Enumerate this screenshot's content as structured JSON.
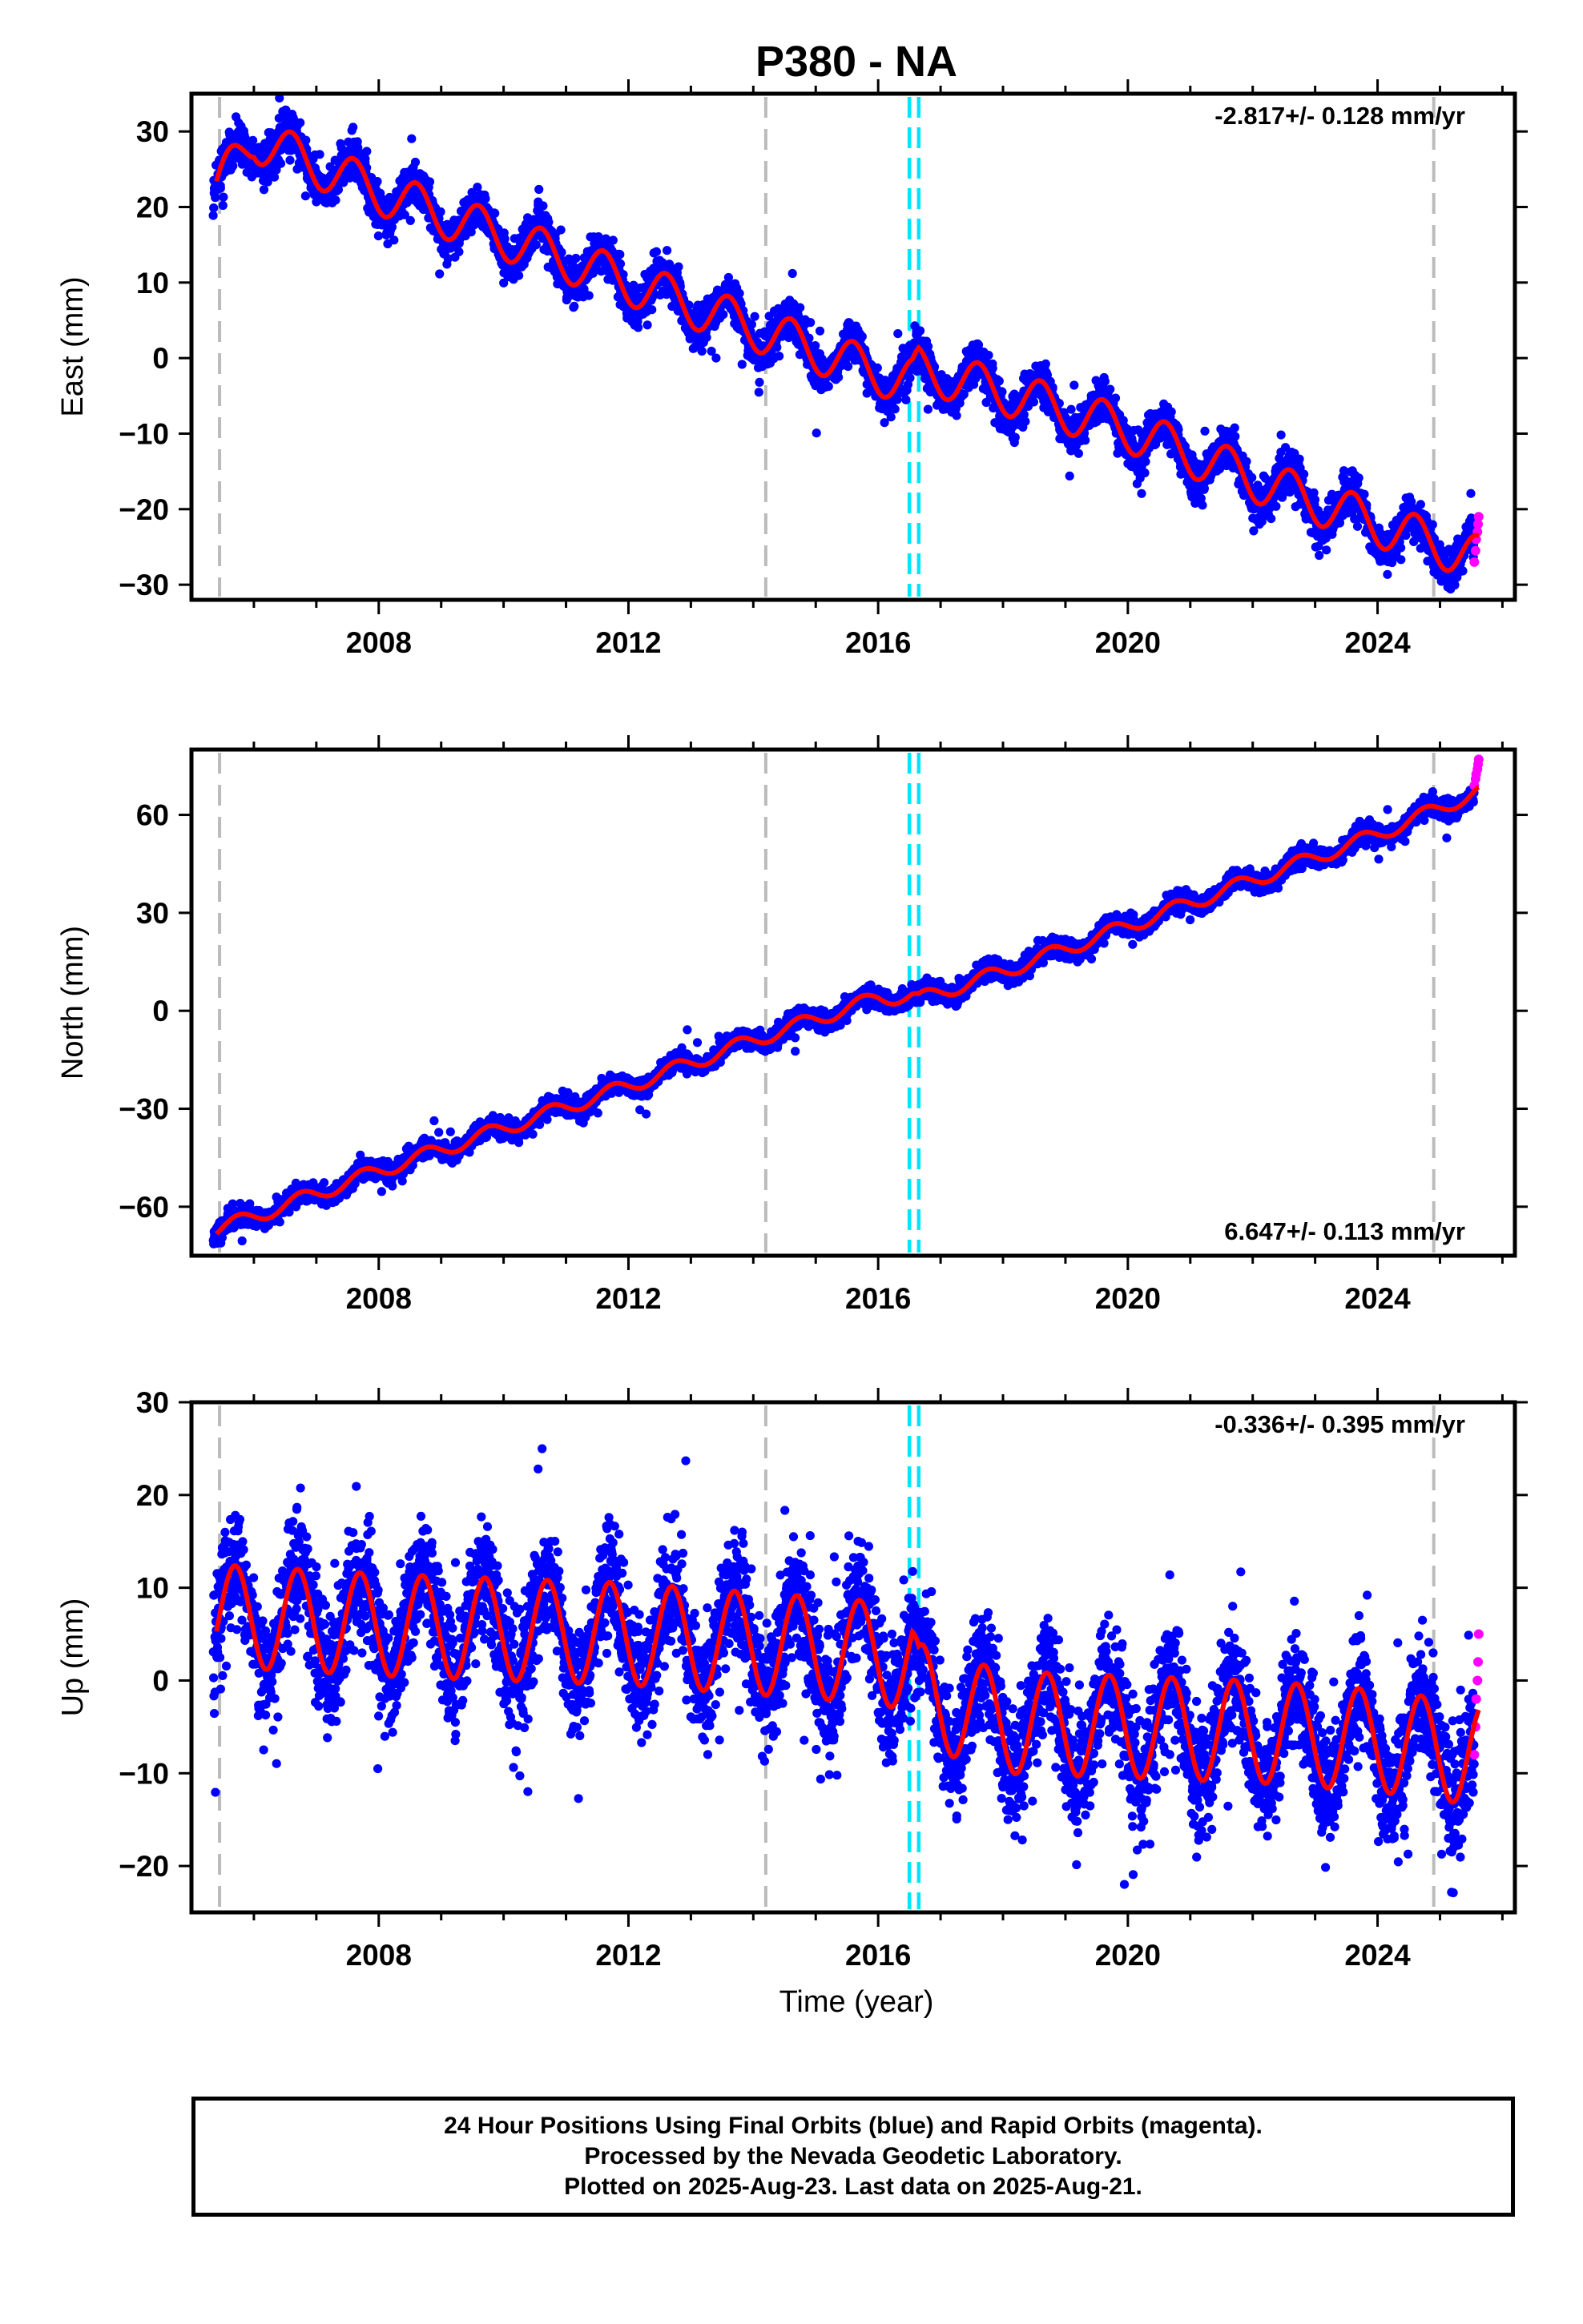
{
  "title": "P380 - NA",
  "x_axis_label": "Time (year)",
  "footer": {
    "line1": "24 Hour Positions Using Final Orbits (blue) and Rapid Orbits (magenta).",
    "line2": "Processed by the Nevada Geodetic Laboratory.",
    "line3": "Plotted on 2025-Aug-23. Last data on 2025-Aug-21."
  },
  "colors": {
    "final_orbits": "#0000ff",
    "rapid_orbits": "#ff00ff",
    "model_fit": "#ff0000",
    "equipment_change": "#bbbbbb",
    "offset_marker": "#00e5ff"
  },
  "chart_data": [
    {
      "type": "scatter",
      "component": "east",
      "ylabel": "East (mm)",
      "rate_text": "-2.817+/- 0.128 mm/yr",
      "rate_position": "top-right",
      "xlim": [
        2005.0,
        2026.2
      ],
      "ylim": [
        -32,
        35
      ],
      "x_ticks": [
        2008,
        2012,
        2016,
        2020,
        2024
      ],
      "y_ticks": [
        -30,
        -20,
        -10,
        0,
        10,
        20,
        30
      ],
      "grid": false,
      "gray_dashed_lines": [
        2005.45,
        2014.2,
        2024.9
      ],
      "cyan_dashed_lines": [
        2016.5,
        2016.65
      ],
      "fit_knots": [
        [
          2005.4,
          22.5
        ],
        [
          2006.0,
          29.0
        ],
        [
          2008.0,
          22.0
        ],
        [
          2010.0,
          16.0
        ],
        [
          2012.0,
          10.0
        ],
        [
          2014.0,
          4.0
        ],
        [
          2016.0,
          -2.0
        ],
        [
          2016.55,
          -3.0
        ],
        [
          2016.65,
          -1.5
        ],
        [
          2018.0,
          -4.5
        ],
        [
          2020.0,
          -9.5
        ],
        [
          2022.0,
          -16.0
        ],
        [
          2024.0,
          -22.0
        ],
        [
          2025.6,
          -26.5
        ]
      ],
      "seasonal_amplitude": 3.0,
      "seasonal_phase": 0.35,
      "scatter_sigma": 1.3,
      "rapid_points": [
        [
          2025.55,
          -27.0
        ],
        [
          2025.57,
          -25.5
        ],
        [
          2025.58,
          -24.0
        ],
        [
          2025.6,
          -23.0
        ],
        [
          2025.61,
          -22.0
        ],
        [
          2025.62,
          -21.0
        ]
      ]
    },
    {
      "type": "scatter",
      "component": "north",
      "ylabel": "North (mm)",
      "rate_text": "6.647+/- 0.113 mm/yr",
      "rate_position": "bottom-right",
      "xlim": [
        2005.0,
        2026.2
      ],
      "ylim": [
        -75,
        80
      ],
      "x_ticks": [
        2008,
        2012,
        2016,
        2020,
        2024
      ],
      "y_ticks": [
        -60,
        -30,
        0,
        30,
        60
      ],
      "grid": false,
      "gray_dashed_lines": [
        2005.45,
        2014.2,
        2024.9
      ],
      "cyan_dashed_lines": [
        2016.5,
        2016.65
      ],
      "fit_knots": [
        [
          2005.4,
          -67.0
        ],
        [
          2006.0,
          -63.0
        ],
        [
          2008.0,
          -49.0
        ],
        [
          2010.0,
          -36.0
        ],
        [
          2012.0,
          -23.0
        ],
        [
          2014.0,
          -9.0
        ],
        [
          2016.0,
          4.0
        ],
        [
          2016.55,
          4.5
        ],
        [
          2016.65,
          3.5
        ],
        [
          2018.0,
          12.0
        ],
        [
          2020.0,
          26.0
        ],
        [
          2022.0,
          40.0
        ],
        [
          2024.0,
          54.0
        ],
        [
          2025.6,
          67.0
        ]
      ],
      "seasonal_amplitude": 2.2,
      "seasonal_phase": 0.5,
      "scatter_sigma": 1.4,
      "rapid_points": [
        [
          2025.55,
          69.0
        ],
        [
          2025.57,
          71.0
        ],
        [
          2025.58,
          72.5
        ],
        [
          2025.6,
          74.0
        ],
        [
          2025.61,
          75.5
        ],
        [
          2025.62,
          77.0
        ]
      ]
    },
    {
      "type": "scatter",
      "component": "up",
      "ylabel": "Up (mm)",
      "rate_text": "-0.336+/- 0.395 mm/yr",
      "rate_position": "top-right",
      "xlim": [
        2005.0,
        2026.2
      ],
      "ylim": [
        -25,
        30
      ],
      "x_ticks": [
        2008,
        2012,
        2016,
        2020,
        2024
      ],
      "y_ticks": [
        -20,
        -10,
        0,
        10,
        20,
        30
      ],
      "grid": false,
      "gray_dashed_lines": [
        2005.45,
        2014.2,
        2024.9
      ],
      "cyan_dashed_lines": [
        2016.5,
        2016.65
      ],
      "fit_knots": [
        [
          2005.4,
          7.0
        ],
        [
          2008.0,
          6.0
        ],
        [
          2012.0,
          5.0
        ],
        [
          2016.0,
          3.0
        ],
        [
          2016.55,
          2.0
        ],
        [
          2016.65,
          -1.5
        ],
        [
          2018.0,
          -4.5
        ],
        [
          2020.0,
          -5.0
        ],
        [
          2022.0,
          -5.5
        ],
        [
          2024.0,
          -6.5
        ],
        [
          2025.6,
          -8.0
        ]
      ],
      "seasonal_amplitude": 5.5,
      "seasonal_phase": 0.45,
      "scatter_sigma": 3.2,
      "rapid_points": [
        [
          2025.55,
          -8.0
        ],
        [
          2025.57,
          -5.0
        ],
        [
          2025.58,
          -2.0
        ],
        [
          2025.6,
          0.0
        ],
        [
          2025.61,
          2.0
        ],
        [
          2025.62,
          5.0
        ]
      ]
    }
  ]
}
